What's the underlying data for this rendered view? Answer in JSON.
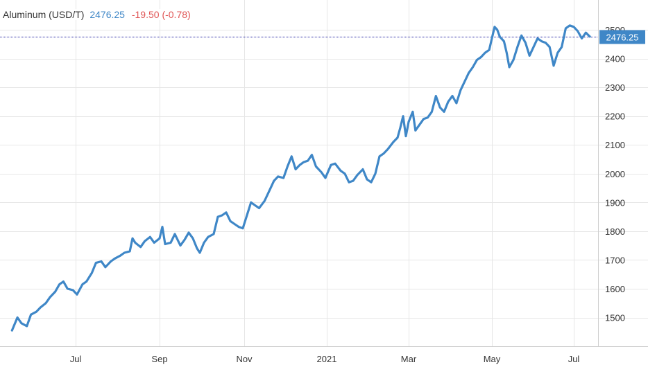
{
  "legend": {
    "name": "Aluminum (USD/T)",
    "last": "2476.25",
    "change": "-19.50 (-0.78)"
  },
  "colors": {
    "line": "#3f87c7",
    "change_negative": "#e05555",
    "last_price_line": "#1f1f9e",
    "grid": "#e6e6e6",
    "price_tag": "#3f87c7"
  },
  "chart_data": {
    "type": "line",
    "title": "",
    "xlabel": "",
    "ylabel": "",
    "x_tick_labels": [
      "Jul",
      "Sep",
      "Nov",
      "2021",
      "Mar",
      "May",
      "Jul"
    ],
    "y_tick_labels": [
      1500,
      1600,
      1700,
      1800,
      1900,
      2000,
      2100,
      2200,
      2300,
      2400,
      2500
    ],
    "ylim": [
      1420,
      2560
    ],
    "xlim": [
      "2020-05-15",
      "2021-07-20"
    ],
    "grid": true,
    "last_price": 2476.25,
    "series": [
      {
        "name": "Aluminum (USD/T)",
        "points": [
          [
            "2020-05-15",
            1455
          ],
          [
            "2020-05-19",
            1500
          ],
          [
            "2020-05-22",
            1480
          ],
          [
            "2020-05-26",
            1470
          ],
          [
            "2020-05-29",
            1510
          ],
          [
            "2020-06-02",
            1520
          ],
          [
            "2020-06-05",
            1535
          ],
          [
            "2020-06-09",
            1550
          ],
          [
            "2020-06-12",
            1570
          ],
          [
            "2020-06-16",
            1590
          ],
          [
            "2020-06-19",
            1615
          ],
          [
            "2020-06-22",
            1625
          ],
          [
            "2020-06-25",
            1600
          ],
          [
            "2020-06-29",
            1595
          ],
          [
            "2020-07-02",
            1580
          ],
          [
            "2020-07-06",
            1615
          ],
          [
            "2020-07-09",
            1625
          ],
          [
            "2020-07-13",
            1655
          ],
          [
            "2020-07-16",
            1690
          ],
          [
            "2020-07-20",
            1695
          ],
          [
            "2020-07-23",
            1675
          ],
          [
            "2020-07-27",
            1695
          ],
          [
            "2020-07-30",
            1705
          ],
          [
            "2020-08-03",
            1715
          ],
          [
            "2020-08-06",
            1725
          ],
          [
            "2020-08-10",
            1730
          ],
          [
            "2020-08-12",
            1775
          ],
          [
            "2020-08-14",
            1760
          ],
          [
            "2020-08-18",
            1745
          ],
          [
            "2020-08-21",
            1765
          ],
          [
            "2020-08-25",
            1780
          ],
          [
            "2020-08-28",
            1760
          ],
          [
            "2020-09-01",
            1775
          ],
          [
            "2020-09-03",
            1815
          ],
          [
            "2020-09-05",
            1755
          ],
          [
            "2020-09-09",
            1760
          ],
          [
            "2020-09-12",
            1790
          ],
          [
            "2020-09-16",
            1750
          ],
          [
            "2020-09-19",
            1770
          ],
          [
            "2020-09-22",
            1795
          ],
          [
            "2020-09-25",
            1775
          ],
          [
            "2020-09-28",
            1740
          ],
          [
            "2020-09-30",
            1725
          ],
          [
            "2020-10-03",
            1760
          ],
          [
            "2020-10-06",
            1780
          ],
          [
            "2020-10-10",
            1790
          ],
          [
            "2020-10-13",
            1850
          ],
          [
            "2020-10-16",
            1855
          ],
          [
            "2020-10-19",
            1865
          ],
          [
            "2020-10-22",
            1835
          ],
          [
            "2020-10-25",
            1825
          ],
          [
            "2020-10-28",
            1815
          ],
          [
            "2020-10-31",
            1810
          ],
          [
            "2020-11-03",
            1855
          ],
          [
            "2020-11-06",
            1900
          ],
          [
            "2020-11-09",
            1890
          ],
          [
            "2020-11-12",
            1880
          ],
          [
            "2020-11-16",
            1905
          ],
          [
            "2020-11-20",
            1945
          ],
          [
            "2020-11-23",
            1975
          ],
          [
            "2020-11-26",
            1990
          ],
          [
            "2020-11-30",
            1985
          ],
          [
            "2020-12-03",
            2025
          ],
          [
            "2020-12-06",
            2060
          ],
          [
            "2020-12-09",
            2015
          ],
          [
            "2020-12-12",
            2030
          ],
          [
            "2020-12-15",
            2040
          ],
          [
            "2020-12-18",
            2045
          ],
          [
            "2020-12-21",
            2065
          ],
          [
            "2020-12-24",
            2025
          ],
          [
            "2020-12-28",
            2005
          ],
          [
            "2020-12-31",
            1985
          ],
          [
            "2021-01-04",
            2030
          ],
          [
            "2021-01-07",
            2035
          ],
          [
            "2021-01-11",
            2010
          ],
          [
            "2021-01-14",
            2000
          ],
          [
            "2021-01-17",
            1970
          ],
          [
            "2021-01-20",
            1975
          ],
          [
            "2021-01-23",
            1995
          ],
          [
            "2021-01-27",
            2015
          ],
          [
            "2021-01-30",
            1980
          ],
          [
            "2021-02-02",
            1970
          ],
          [
            "2021-02-05",
            2000
          ],
          [
            "2021-02-08",
            2060
          ],
          [
            "2021-02-11",
            2070
          ],
          [
            "2021-02-14",
            2085
          ],
          [
            "2021-02-18",
            2110
          ],
          [
            "2021-02-21",
            2125
          ],
          [
            "2021-02-23",
            2160
          ],
          [
            "2021-02-25",
            2200
          ],
          [
            "2021-02-27",
            2130
          ],
          [
            "2021-03-01",
            2180
          ],
          [
            "2021-03-04",
            2215
          ],
          [
            "2021-03-06",
            2150
          ],
          [
            "2021-03-09",
            2170
          ],
          [
            "2021-03-12",
            2190
          ],
          [
            "2021-03-15",
            2195
          ],
          [
            "2021-03-18",
            2215
          ],
          [
            "2021-03-21",
            2270
          ],
          [
            "2021-03-24",
            2230
          ],
          [
            "2021-03-27",
            2215
          ],
          [
            "2021-03-30",
            2250
          ],
          [
            "2021-04-02",
            2270
          ],
          [
            "2021-04-05",
            2245
          ],
          [
            "2021-04-08",
            2290
          ],
          [
            "2021-04-11",
            2320
          ],
          [
            "2021-04-14",
            2350
          ],
          [
            "2021-04-17",
            2370
          ],
          [
            "2021-04-20",
            2395
          ],
          [
            "2021-04-23",
            2405
          ],
          [
            "2021-04-26",
            2420
          ],
          [
            "2021-04-29",
            2430
          ],
          [
            "2021-05-03",
            2510
          ],
          [
            "2021-05-05",
            2500
          ],
          [
            "2021-05-07",
            2475
          ],
          [
            "2021-05-10",
            2460
          ],
          [
            "2021-05-12",
            2420
          ],
          [
            "2021-05-14",
            2370
          ],
          [
            "2021-05-17",
            2395
          ],
          [
            "2021-05-20",
            2440
          ],
          [
            "2021-05-23",
            2480
          ],
          [
            "2021-05-26",
            2455
          ],
          [
            "2021-05-29",
            2410
          ],
          [
            "2021-06-01",
            2440
          ],
          [
            "2021-06-04",
            2470
          ],
          [
            "2021-06-07",
            2460
          ],
          [
            "2021-06-10",
            2455
          ],
          [
            "2021-06-13",
            2440
          ],
          [
            "2021-06-16",
            2375
          ],
          [
            "2021-06-19",
            2420
          ],
          [
            "2021-06-22",
            2440
          ],
          [
            "2021-06-25",
            2505
          ],
          [
            "2021-06-28",
            2515
          ],
          [
            "2021-07-01",
            2510
          ],
          [
            "2021-07-04",
            2495
          ],
          [
            "2021-07-07",
            2470
          ],
          [
            "2021-07-10",
            2490
          ],
          [
            "2021-07-13",
            2476.25
          ]
        ]
      }
    ]
  }
}
